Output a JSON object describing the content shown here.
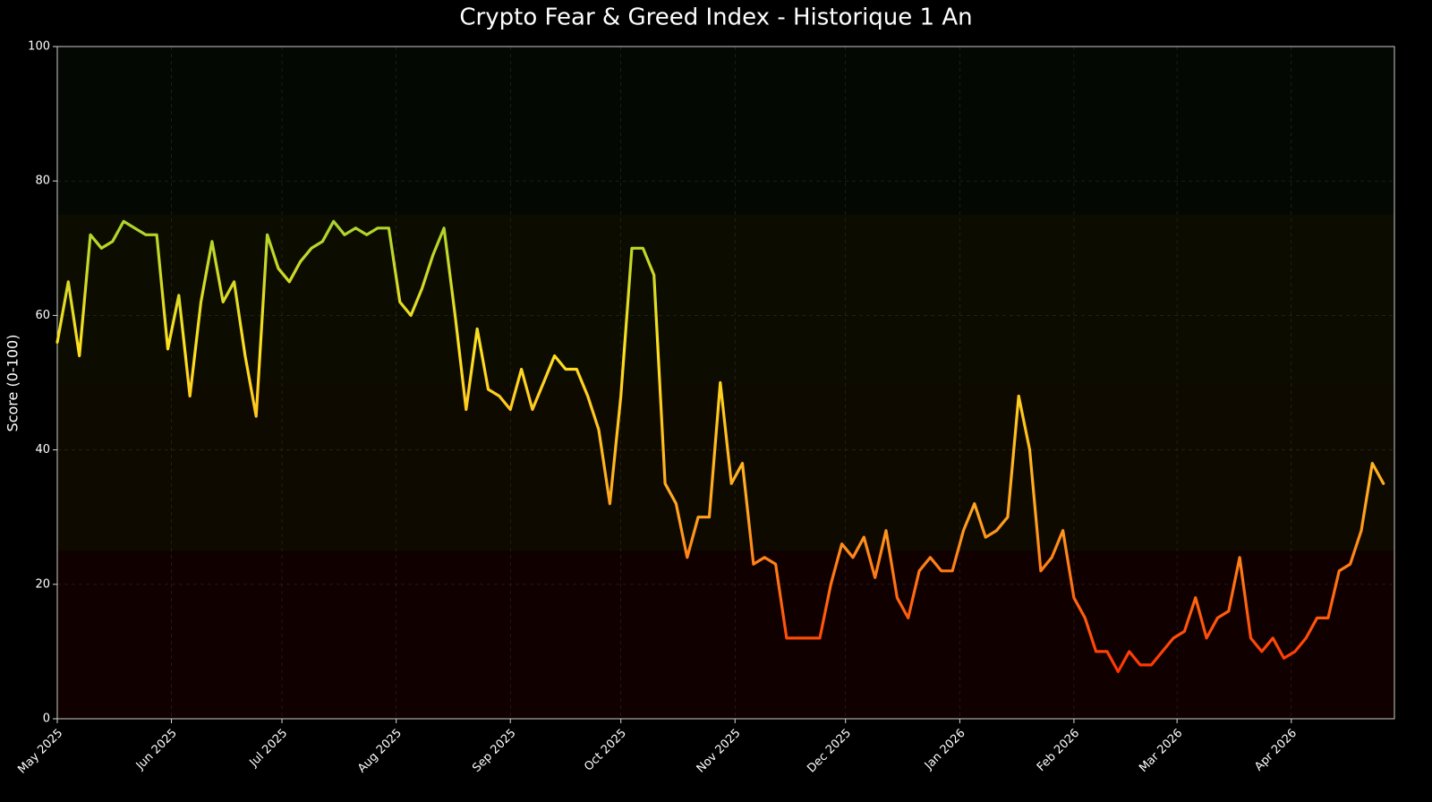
{
  "chart_data": {
    "type": "line",
    "title": "Crypto Fear & Greed Index - Historique 1 An",
    "y_label": "Score (0-100)",
    "ylim": [
      0,
      100
    ],
    "yticks": [
      0,
      20,
      40,
      60,
      80,
      100
    ],
    "xlim": [
      0,
      121
    ],
    "xticks": [
      {
        "value": 0,
        "label": "May 2025"
      },
      {
        "value": 10.33,
        "label": "Jun 2025"
      },
      {
        "value": 20.33,
        "label": "Jul 2025"
      },
      {
        "value": 30.67,
        "label": "Aug 2025"
      },
      {
        "value": 41,
        "label": "Sep 2025"
      },
      {
        "value": 51,
        "label": "Oct 2025"
      },
      {
        "value": 61.33,
        "label": "Nov 2025"
      },
      {
        "value": 71.33,
        "label": "Dec 2025"
      },
      {
        "value": 81.67,
        "label": "Jan 2026"
      },
      {
        "value": 92,
        "label": "Feb 2026"
      },
      {
        "value": 101.33,
        "label": "Mar 2026"
      },
      {
        "value": 111.67,
        "label": "Apr 2026"
      }
    ],
    "grid": true,
    "zones": [
      {
        "from": 0,
        "to": 25,
        "color": "#100000"
      },
      {
        "from": 25,
        "to": 50,
        "color": "#0e0a00"
      },
      {
        "from": 50,
        "to": 75,
        "color": "#0d0c00"
      },
      {
        "from": 75,
        "to": 100,
        "color": "#030802"
      }
    ],
    "color_scale": [
      {
        "value": 5,
        "color": "#ff2a00"
      },
      {
        "value": 30,
        "color": "#ffa020"
      },
      {
        "value": 55,
        "color": "#ffe020"
      },
      {
        "value": 80,
        "color": "#90d030"
      }
    ],
    "values": [
      56,
      65,
      54,
      72,
      70,
      71,
      74,
      73,
      72,
      72,
      55,
      63,
      48,
      62,
      71,
      62,
      65,
      54,
      45,
      72,
      67,
      65,
      68,
      70,
      71,
      74,
      72,
      73,
      72,
      73,
      73,
      62,
      60,
      64,
      69,
      73,
      60,
      46,
      58,
      49,
      48,
      46,
      52,
      46,
      50,
      54,
      52,
      52,
      48,
      43,
      32,
      48,
      70,
      70,
      66,
      35,
      32,
      24,
      30,
      30,
      50,
      35,
      38,
      23,
      24,
      23,
      12,
      12,
      12,
      12,
      20,
      26,
      24,
      27,
      21,
      28,
      18,
      15,
      22,
      24,
      22,
      22,
      28,
      32,
      27,
      28,
      30,
      48,
      40,
      22,
      24,
      28,
      18,
      15,
      10,
      10,
      7,
      10,
      8,
      8,
      10,
      12,
      13,
      18,
      12,
      15,
      16,
      24,
      12,
      10,
      12,
      9,
      10,
      12,
      15,
      15,
      22,
      23,
      28,
      38,
      35
    ]
  }
}
